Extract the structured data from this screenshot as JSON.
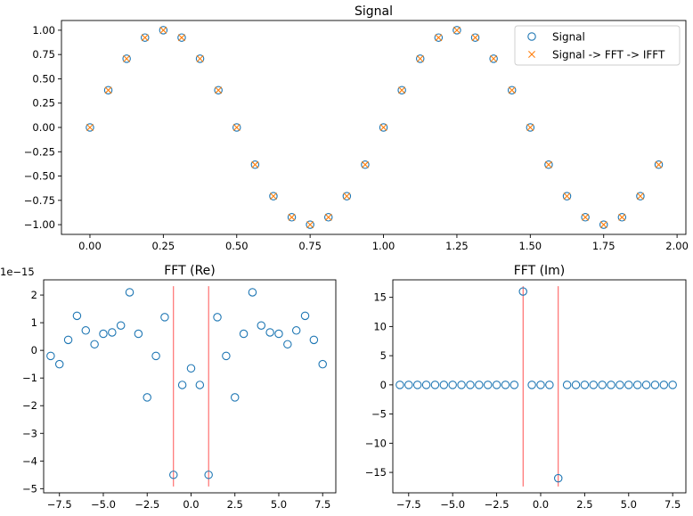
{
  "colors": {
    "signal": "#1f77b4",
    "reconstructed": "#ff7f0e",
    "marker_line": "#ff0000"
  },
  "chart_data": [
    {
      "id": "signal",
      "type": "scatter",
      "title": "Signal",
      "xlabel": "",
      "ylabel": "",
      "xlim": [
        -0.097,
        2.03
      ],
      "ylim": [
        -1.1,
        1.1
      ],
      "xticks": [
        0.0,
        0.25,
        0.5,
        0.75,
        1.0,
        1.25,
        1.5,
        1.75,
        2.0
      ],
      "xtick_labels": [
        "0.00",
        "0.25",
        "0.50",
        "0.75",
        "1.00",
        "1.25",
        "1.50",
        "1.75",
        "2.00"
      ],
      "yticks": [
        1.0,
        0.75,
        0.5,
        0.25,
        0.0,
        -0.25,
        -0.5,
        -0.75,
        -1.0
      ],
      "ytick_labels": [
        "1.00",
        "0.75",
        "0.50",
        "0.25",
        "0.00",
        "−0.25",
        "−0.50",
        "−0.75",
        "−1.00"
      ],
      "legend": {
        "position": "top-right",
        "entries": [
          "Signal",
          "Signal -> FFT -> IFFT"
        ]
      },
      "grid": false,
      "x": [
        0.0,
        0.0625,
        0.125,
        0.1875,
        0.25,
        0.3125,
        0.375,
        0.4375,
        0.5,
        0.5625,
        0.625,
        0.6875,
        0.75,
        0.8125,
        0.875,
        0.9375,
        1.0,
        1.0625,
        1.125,
        1.1875,
        1.25,
        1.3125,
        1.375,
        1.4375,
        1.5,
        1.5625,
        1.625,
        1.6875,
        1.75,
        1.8125,
        1.875,
        1.9375
      ],
      "series": [
        {
          "name": "Signal",
          "marker": "circle",
          "values": [
            0.0,
            0.383,
            0.707,
            0.924,
            1.0,
            0.924,
            0.707,
            0.383,
            0.0,
            -0.383,
            -0.707,
            -0.924,
            -1.0,
            -0.924,
            -0.707,
            -0.383,
            0.0,
            0.383,
            0.707,
            0.924,
            1.0,
            0.924,
            0.707,
            0.383,
            0.0,
            -0.383,
            -0.707,
            -0.924,
            -1.0,
            -0.924,
            -0.707,
            -0.383
          ]
        },
        {
          "name": "Signal -> FFT -> IFFT",
          "marker": "x",
          "values": [
            0.0,
            0.383,
            0.707,
            0.924,
            1.0,
            0.924,
            0.707,
            0.383,
            0.0,
            -0.383,
            -0.707,
            -0.924,
            -1.0,
            -0.924,
            -0.707,
            -0.383,
            0.0,
            0.383,
            0.707,
            0.924,
            1.0,
            0.924,
            0.707,
            0.383,
            0.0,
            -0.383,
            -0.707,
            -0.924,
            -1.0,
            -0.924,
            -0.707,
            -0.383
          ]
        }
      ]
    },
    {
      "id": "fft_re",
      "type": "scatter",
      "title": "FFT (Re)",
      "offset_label": "1e−15",
      "xlim": [
        -8.4,
        8.25
      ],
      "ylim": [
        -5.15,
        2.55
      ],
      "xticks": [
        -7.5,
        -5.0,
        -2.5,
        0.0,
        2.5,
        5.0,
        7.5
      ],
      "xtick_labels": [
        "−7.5",
        "−5.0",
        "−2.5",
        "0.0",
        "2.5",
        "5.0",
        "7.5"
      ],
      "yticks": [
        2,
        1,
        0,
        -1,
        -2,
        -3,
        -4,
        -5
      ],
      "ytick_labels": [
        "2",
        "1",
        "0",
        "−1",
        "−2",
        "−3",
        "−4",
        "−5"
      ],
      "vlines": [
        -1,
        1
      ],
      "grid": false,
      "x": [
        -8.0,
        -7.5,
        -7.0,
        -6.5,
        -6.0,
        -5.5,
        -5.0,
        -4.5,
        -4.0,
        -3.5,
        -3.0,
        -2.5,
        -2.0,
        -1.5,
        -1.0,
        -0.5,
        0.0,
        0.5,
        1.0,
        1.5,
        2.0,
        2.5,
        3.0,
        3.5,
        4.0,
        4.5,
        5.0,
        5.5,
        6.0,
        6.5,
        7.0,
        7.5
      ],
      "values": [
        -0.2,
        -0.5,
        0.38,
        1.25,
        0.72,
        0.22,
        0.6,
        0.65,
        0.9,
        2.1,
        0.6,
        -1.7,
        -0.2,
        1.2,
        -4.5,
        -1.25,
        -0.65,
        -1.25,
        -4.5,
        1.2,
        -0.2,
        -1.7,
        0.6,
        2.1,
        0.9,
        0.65,
        0.6,
        0.22,
        0.72,
        1.25,
        0.38,
        -0.5
      ]
    },
    {
      "id": "fft_im",
      "type": "scatter",
      "title": "FFT (Im)",
      "xlim": [
        -8.4,
        8.25
      ],
      "ylim": [
        -18.5,
        18.0
      ],
      "xticks": [
        -7.5,
        -5.0,
        -2.5,
        0.0,
        2.5,
        5.0,
        7.5
      ],
      "xtick_labels": [
        "−7.5",
        "−5.0",
        "−2.5",
        "0.0",
        "2.5",
        "5.0",
        "7.5"
      ],
      "yticks": [
        15,
        10,
        5,
        0,
        -5,
        -10,
        -15
      ],
      "ytick_labels": [
        "15",
        "10",
        "5",
        "0",
        "−5",
        "−10",
        "−15"
      ],
      "vlines": [
        -1,
        1
      ],
      "grid": false,
      "x": [
        -8.0,
        -7.5,
        -7.0,
        -6.5,
        -6.0,
        -5.5,
        -5.0,
        -4.5,
        -4.0,
        -3.5,
        -3.0,
        -2.5,
        -2.0,
        -1.5,
        -1.0,
        -0.5,
        0.0,
        0.5,
        1.0,
        1.5,
        2.0,
        2.5,
        3.0,
        3.5,
        4.0,
        4.5,
        5.0,
        5.5,
        6.0,
        6.5,
        7.0,
        7.5
      ],
      "values": [
        0,
        0,
        0,
        0,
        0,
        0,
        0,
        0,
        0,
        0,
        0,
        0,
        0,
        0,
        16,
        0,
        0,
        0,
        -16,
        0,
        0,
        0,
        0,
        0,
        0,
        0,
        0,
        0,
        0,
        0,
        0,
        0
      ]
    }
  ]
}
